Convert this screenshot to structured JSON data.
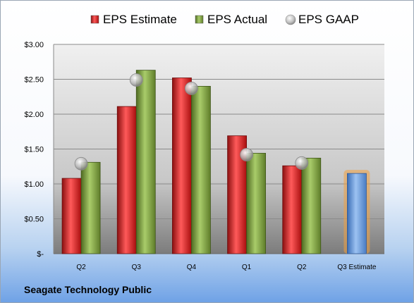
{
  "chart_data": {
    "type": "bar",
    "categories": [
      "Q2",
      "Q3",
      "Q4",
      "Q1",
      "Q2",
      "Q3 Estimate"
    ],
    "series": [
      {
        "name": "EPS Estimate",
        "values": [
          1.08,
          2.11,
          2.52,
          1.69,
          1.26,
          null
        ],
        "color": "#c00000"
      },
      {
        "name": "EPS Actual",
        "values": [
          1.31,
          2.63,
          2.4,
          1.44,
          1.37,
          null
        ],
        "color": "#77933c"
      },
      {
        "name": "EPS GAAP",
        "marker": "circle",
        "values": [
          1.29,
          2.49,
          2.37,
          1.42,
          1.3,
          null
        ],
        "color": "#b0b0b0"
      }
    ],
    "forecast": {
      "category": "Q3 Estimate",
      "value": 1.15,
      "color": "#5b8fd4",
      "glow_color": "#f0a040"
    },
    "ylim": [
      0,
      3
    ],
    "yticks": [
      0,
      0.5,
      1,
      1.5,
      2,
      2.5,
      3
    ],
    "ytick_labels": [
      "$-",
      "$0.50",
      "$1.00",
      "$1.50",
      "$2.00",
      "$2.50",
      "$3.00"
    ],
    "grid": true,
    "legend_position": "top"
  },
  "footer": {
    "company": "Seagate Technology Public"
  }
}
